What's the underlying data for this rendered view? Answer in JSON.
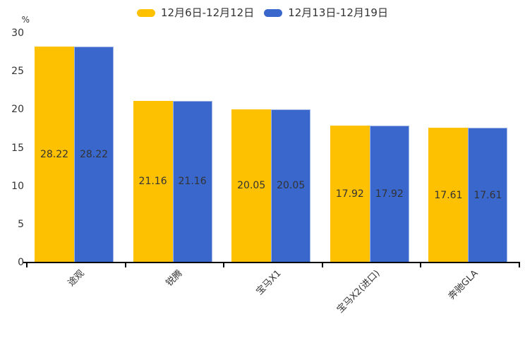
{
  "chart_data": {
    "type": "bar",
    "title": "",
    "unit_label": "%",
    "categories": [
      "途观",
      "锐腾",
      "宝马X1",
      "宝马X2(进口)",
      "奔驰GLA"
    ],
    "series": [
      {
        "name": "12月6日-12月12日",
        "color": "#fdc101",
        "border_color": "#fdc101",
        "values": [
          28.22,
          21.16,
          20.05,
          17.92,
          17.61
        ]
      },
      {
        "name": "12月13日-12月19日",
        "color": "#3a67cb",
        "border_color": "#9fb6e4",
        "values": [
          28.22,
          21.16,
          20.05,
          17.92,
          17.61
        ]
      }
    ],
    "ylim": [
      0,
      30
    ],
    "yticks": [
      0,
      5,
      10,
      15,
      20,
      25,
      30
    ],
    "grid": false,
    "legend_position": "top-center",
    "value_label_position": "inside-middle",
    "colors": {
      "text": "#333333",
      "axis": "#000000",
      "background": "#ffffff"
    }
  }
}
